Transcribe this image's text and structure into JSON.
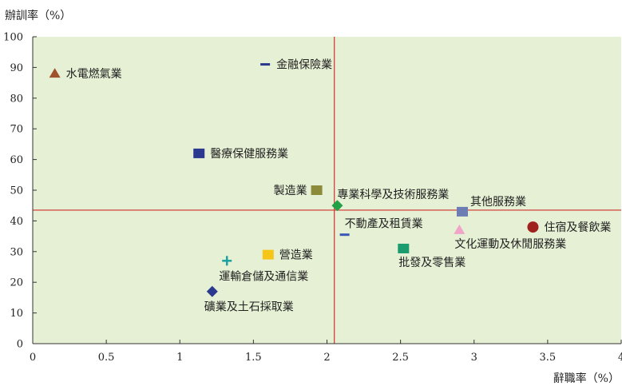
{
  "chart_data": {
    "type": "scatter",
    "title": "",
    "xlabel": "辭職率（%）",
    "ylabel": "辦訓率（%）",
    "xlim": [
      0,
      4
    ],
    "ylim": [
      0,
      100
    ],
    "x_ticks": [
      "0",
      "0.5",
      "1",
      "1.5",
      "2",
      "2.5",
      "3",
      "3.5",
      "4"
    ],
    "y_ticks": [
      "0",
      "10",
      "20",
      "30",
      "40",
      "50",
      "60",
      "70",
      "80",
      "90",
      "100"
    ],
    "grid": false,
    "background": "#e6f0d4",
    "reference_lines": {
      "x": 2.05,
      "y": 43.5,
      "color": "#d0312d"
    },
    "points": [
      {
        "label": "水電燃氣業",
        "x": 0.15,
        "y": 88,
        "marker": "triangle",
        "color": "#a0522d",
        "label_side": "right"
      },
      {
        "label": "金融保險業",
        "x": 1.58,
        "y": 91,
        "marker": "dash",
        "color": "#2b3a8f",
        "label_side": "right"
      },
      {
        "label": "醫療保健服務業",
        "x": 1.13,
        "y": 62,
        "marker": "square",
        "color": "#2b3a8f",
        "label_side": "right"
      },
      {
        "label": "製造業",
        "x": 1.93,
        "y": 50,
        "marker": "square",
        "color": "#8b8b3a",
        "label_side": "left"
      },
      {
        "label": "專業科學及技術服務業",
        "x": 2.07,
        "y": 45,
        "marker": "diamond",
        "color": "#21a047",
        "label_side": "above"
      },
      {
        "label": "其他服務業",
        "x": 2.92,
        "y": 43,
        "marker": "square",
        "color": "#6b7db3",
        "label_side": "above-right"
      },
      {
        "label": "不動產及租賃業",
        "x": 2.12,
        "y": 35.5,
        "marker": "dash",
        "color": "#3b57b5",
        "label_side": "above"
      },
      {
        "label": "住宿及餐飲業",
        "x": 3.4,
        "y": 38,
        "marker": "circle",
        "color": "#a0221e",
        "label_side": "right"
      },
      {
        "label": "文化運動及休閒服務業",
        "x": 2.9,
        "y": 37,
        "marker": "triangle",
        "color": "#f0a5c8",
        "label_side": "below"
      },
      {
        "label": "批發及零售業",
        "x": 2.52,
        "y": 31,
        "marker": "square",
        "color": "#1a9c6e",
        "label_side": "below"
      },
      {
        "label": "營造業",
        "x": 1.6,
        "y": 29,
        "marker": "square",
        "color": "#f5c518",
        "label_side": "right"
      },
      {
        "label": "運輸倉儲及通信業",
        "x": 1.32,
        "y": 27,
        "marker": "plus",
        "color": "#1aa0a0",
        "label_side": "below-right"
      },
      {
        "label": "礦業及土石採取業",
        "x": 1.22,
        "y": 17,
        "marker": "diamond",
        "color": "#2b3a8f",
        "label_side": "below-right"
      }
    ]
  }
}
